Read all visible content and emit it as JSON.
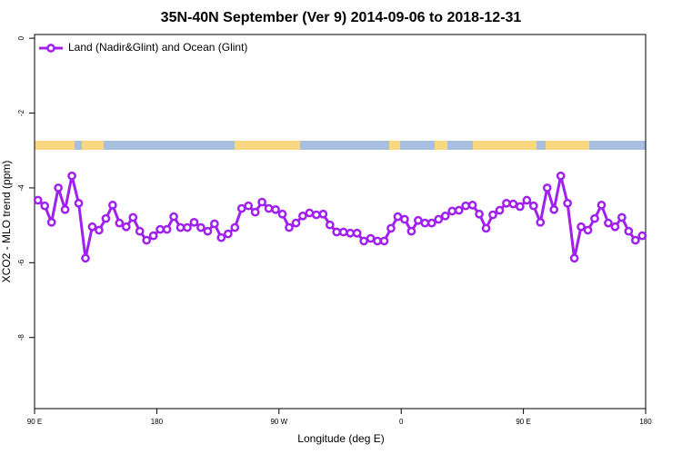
{
  "chart_data": {
    "type": "line",
    "title": "35N-40N September (Ver 9)   2014-09-06 to 2018-12-31",
    "x_label": "Longitude (deg E)",
    "y_label": "XCO2 - MLO trend (ppm)",
    "xlim": [
      90,
      540
    ],
    "xticks": [
      {
        "value": 90,
        "label": "90 E"
      },
      180,
      {
        "value": 270,
        "label": "90 W"
      },
      {
        "value": 360,
        "label": "0"
      },
      {
        "value": 450,
        "label": "90 E"
      },
      {
        "value": 540,
        "label": "180"
      }
    ],
    "ylim": [
      -9.9,
      0.1
    ],
    "yticks": [
      0,
      -2,
      -4,
      -6,
      -8
    ],
    "legend": "top-left",
    "x": [
      92.5,
      97.5,
      102.5,
      107.5,
      112.5,
      117.5,
      122.5,
      127.5,
      132.5,
      137.5,
      142.5,
      147.5,
      152.5,
      157.5,
      162.5,
      167.5,
      172.5,
      177.5,
      182.5,
      187.5,
      192.5,
      197.5,
      202.5,
      207.5,
      212.5,
      217.5,
      222.5,
      227.5,
      232.5,
      237.5,
      242.5,
      247.5,
      252.5,
      257.5,
      262.5,
      267.5,
      272.5,
      277.5,
      282.5,
      287.5,
      292.5,
      297.5,
      302.5,
      307.5,
      312.5,
      317.5,
      322.5,
      327.5,
      332.5,
      337.5,
      342.5,
      347.5,
      352.5,
      357.5,
      362.5,
      367.5,
      372.5,
      377.5,
      382.5,
      387.5,
      392.5,
      397.5,
      402.5,
      407.5,
      412.5,
      417.5,
      422.5,
      427.5,
      432.5,
      437.5,
      442.5,
      447.5,
      452.5,
      457.5,
      462.5,
      467.5,
      472.5,
      477.5,
      482.5,
      487.5,
      492.5,
      497.5,
      502.5,
      507.5,
      512.5,
      517.5,
      522.5,
      527.5,
      532.5,
      537.5
    ],
    "series": [
      {
        "name": "Land (Nadir&Glint) and Ocean (Glint)",
        "color": "#a020f0",
        "values": [
          -4.33,
          -4.48,
          -4.92,
          -4.0,
          -4.58,
          -3.68,
          -4.41,
          -5.88,
          -5.04,
          -5.13,
          -4.82,
          -4.46,
          -4.94,
          -5.04,
          -4.79,
          -5.16,
          -5.4,
          -5.28,
          -5.11,
          -5.11,
          -4.77,
          -5.06,
          -5.06,
          -4.92,
          -5.06,
          -5.16,
          -4.96,
          -5.33,
          -5.23,
          -5.06,
          -4.55,
          -4.48,
          -4.65,
          -4.38,
          -4.55,
          -4.58,
          -4.7,
          -5.06,
          -4.94,
          -4.75,
          -4.67,
          -4.72,
          -4.7,
          -4.99,
          -5.18,
          -5.18,
          -5.21,
          -5.21,
          -5.42,
          -5.35,
          -5.42,
          -5.42,
          -5.08,
          -4.77,
          -4.84,
          -5.16,
          -4.87,
          -4.94,
          -4.94,
          -4.84,
          -4.75,
          -4.62,
          -4.6,
          -4.48,
          -4.46,
          -4.7,
          -5.08,
          -4.72,
          -4.6,
          -4.41,
          -4.43,
          -4.5,
          -4.33,
          -4.48,
          -4.92,
          -4.0,
          -4.58,
          -3.68,
          -4.41,
          -5.88,
          -5.04,
          -5.13,
          -4.82,
          -4.46,
          -4.94,
          -5.04,
          -4.79,
          -5.16,
          -5.4,
          -5.28
        ]
      }
    ]
  }
}
